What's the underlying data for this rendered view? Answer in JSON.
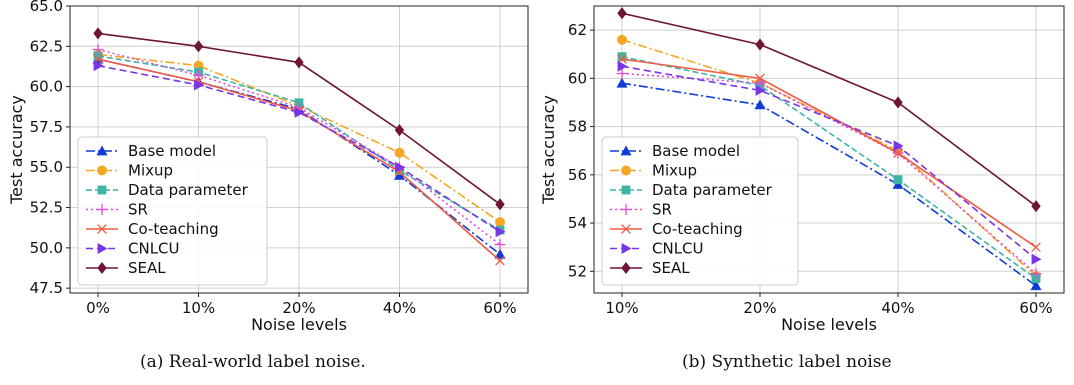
{
  "captions": {
    "a": "(a) Real-world label noise.",
    "b": "(b) Synthetic label noise"
  },
  "series_styles": [
    {
      "name": "Base model",
      "color": "#0f3bd6",
      "dash": "9 3 2 3",
      "marker": "triangle-up"
    },
    {
      "name": "Mixup",
      "color": "#f5a623",
      "dash": "9 3 2 3",
      "marker": "circle"
    },
    {
      "name": "Data parameter",
      "color": "#3db5a5",
      "dash": "6 3",
      "marker": "square"
    },
    {
      "name": "SR",
      "color": "#e24ad8",
      "dash": "2 3",
      "marker": "plus"
    },
    {
      "name": "Co-teaching",
      "color": "#ee5a43",
      "dash": "",
      "marker": "x"
    },
    {
      "name": "CNLCU",
      "color": "#7a35e6",
      "dash": "7 4",
      "marker": "triangle-right"
    },
    {
      "name": "SEAL",
      "color": "#6e1434",
      "dash": "",
      "marker": "diamond"
    }
  ],
  "chart_data": [
    {
      "type": "line",
      "xlabel": "Noise levels",
      "ylabel": "Test accuracy",
      "categories": [
        "0%",
        "10%",
        "20%",
        "40%",
        "60%"
      ],
      "ylim": [
        47.2,
        65.0
      ],
      "yticks": [
        "47.5",
        "50.0",
        "52.5",
        "55.0",
        "57.5",
        "60.0",
        "62.5",
        "65.0"
      ],
      "grid": true,
      "legend": "lower-left",
      "series": [
        {
          "name": "Base model",
          "values": [
            61.7,
            60.3,
            58.6,
            54.5,
            49.6
          ]
        },
        {
          "name": "Mixup",
          "values": [
            62.0,
            61.3,
            58.8,
            55.9,
            51.6
          ]
        },
        {
          "name": "Data parameter",
          "values": [
            61.9,
            60.9,
            59.0,
            54.8,
            51.1
          ]
        },
        {
          "name": "SR",
          "values": [
            62.3,
            60.7,
            58.7,
            55.0,
            50.2
          ]
        },
        {
          "name": "Co-teaching",
          "values": [
            61.7,
            60.3,
            58.5,
            54.7,
            49.2
          ]
        },
        {
          "name": "CNLCU",
          "values": [
            61.3,
            60.1,
            58.4,
            55.0,
            51.0
          ]
        },
        {
          "name": "SEAL",
          "values": [
            63.3,
            62.5,
            61.5,
            57.3,
            52.7
          ]
        }
      ]
    },
    {
      "type": "line",
      "xlabel": "Noise levels",
      "ylabel": "Test accuracy",
      "categories": [
        "10%",
        "20%",
        "40%",
        "60%"
      ],
      "ylim": [
        51.1,
        63.0
      ],
      "yticks": [
        "52",
        "54",
        "56",
        "58",
        "60",
        "62"
      ],
      "grid": true,
      "legend": "lower-left",
      "series": [
        {
          "name": "Base model",
          "values": [
            59.8,
            58.9,
            55.6,
            51.4
          ]
        },
        {
          "name": "Mixup",
          "values": [
            61.6,
            59.8,
            57.0,
            51.8
          ]
        },
        {
          "name": "Data parameter",
          "values": [
            60.9,
            59.7,
            55.8,
            51.7
          ]
        },
        {
          "name": "SR",
          "values": [
            60.2,
            59.8,
            56.9,
            51.9
          ]
        },
        {
          "name": "Co-teaching",
          "values": [
            60.8,
            60.0,
            56.9,
            53.0
          ]
        },
        {
          "name": "CNLCU",
          "values": [
            60.5,
            59.5,
            57.2,
            52.5
          ]
        },
        {
          "name": "SEAL",
          "values": [
            62.7,
            61.4,
            59.0,
            54.7
          ]
        }
      ]
    }
  ]
}
